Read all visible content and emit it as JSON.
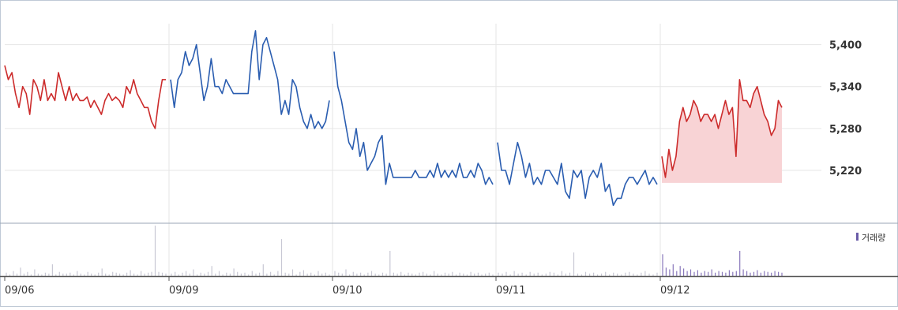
{
  "chart_data": {
    "type": "line",
    "title": "",
    "xlabel": "",
    "ylabel": "",
    "ylim": [
      5150,
      5430
    ],
    "y_ticks": [
      "5,400",
      "5,340",
      "5,280",
      "5,220"
    ],
    "y_tick_values": [
      5400,
      5340,
      5280,
      5220
    ],
    "x_ticks": [
      "09/06",
      "09/09",
      "09/10",
      "09/11",
      "09/12"
    ],
    "legend": {
      "volume_label": "거래량",
      "placement": "top-right of volume panel"
    },
    "colors": {
      "up": "#cc2b2b",
      "down": "#2a5db0",
      "fill_today": "#f8d3d5",
      "volume": "#c8c8d4",
      "volume_today": "#8877bb",
      "grid": "#e6e6e6",
      "axis": "#555555",
      "legend_marker": "#6a5ca8"
    },
    "series": [
      {
        "day": "09/06",
        "color": "up",
        "values": [
          5370,
          5350,
          5360,
          5330,
          5310,
          5340,
          5330,
          5300,
          5350,
          5340,
          5320,
          5350,
          5320,
          5330,
          5320,
          5360,
          5340,
          5320,
          5340,
          5320,
          5330,
          5320,
          5320,
          5325,
          5310,
          5320,
          5310,
          5300,
          5320,
          5330,
          5320,
          5325,
          5320,
          5310,
          5340,
          5330,
          5350,
          5330,
          5320,
          5310,
          5310,
          5290,
          5280,
          5320,
          5350,
          5350
        ]
      },
      {
        "day": "09/09",
        "color": "down",
        "values": [
          5350,
          5310,
          5350,
          5360,
          5390,
          5370,
          5380,
          5400,
          5360,
          5320,
          5340,
          5380,
          5340,
          5340,
          5330,
          5350,
          5340,
          5330,
          5330,
          5330,
          5330,
          5330,
          5390,
          5420,
          5350,
          5400,
          5410,
          5390,
          5370,
          5350,
          5300,
          5320,
          5300,
          5350,
          5340,
          5310,
          5290,
          5280,
          5300,
          5280,
          5290,
          5280,
          5290,
          5320
        ]
      },
      {
        "day": "09/10",
        "color": "down",
        "values": [
          5390,
          5340,
          5320,
          5290,
          5260,
          5250,
          5280,
          5240,
          5260,
          5220,
          5230,
          5240,
          5260,
          5270,
          5200,
          5230,
          5210,
          5210,
          5210,
          5210,
          5210,
          5210,
          5220,
          5210,
          5210,
          5210,
          5220,
          5210,
          5230,
          5210,
          5220,
          5210,
          5220,
          5210,
          5230,
          5210,
          5210,
          5220,
          5210,
          5230,
          5220,
          5200,
          5210,
          5200
        ]
      },
      {
        "day": "09/11",
        "color": "down",
        "values": [
          5260,
          5220,
          5220,
          5200,
          5230,
          5260,
          5240,
          5210,
          5230,
          5200,
          5210,
          5200,
          5220,
          5220,
          5210,
          5200,
          5230,
          5190,
          5180,
          5220,
          5210,
          5220,
          5180,
          5210,
          5220,
          5210,
          5230,
          5190,
          5200,
          5170,
          5180,
          5180,
          5200,
          5210,
          5210,
          5200,
          5210,
          5220,
          5200,
          5210,
          5200
        ]
      },
      {
        "day": "09/12",
        "color": "up",
        "fill": true,
        "values": [
          5240,
          5210,
          5250,
          5220,
          5240,
          5290,
          5310,
          5290,
          5300,
          5320,
          5310,
          5290,
          5300,
          5300,
          5290,
          5300,
          5280,
          5300,
          5320,
          5300,
          5310,
          5240,
          5350,
          5320,
          5320,
          5310,
          5330,
          5340,
          5320,
          5300,
          5290,
          5270,
          5280,
          5320,
          5310
        ]
      }
    ],
    "volume": [
      {
        "day": "09/06",
        "values": [
          4,
          2,
          6,
          3,
          10,
          3,
          5,
          2,
          8,
          3,
          2,
          4,
          3,
          14,
          2,
          5,
          3,
          3,
          4,
          2,
          6,
          3,
          2,
          5,
          3,
          2,
          4,
          9,
          3,
          2,
          5,
          4,
          3,
          2,
          4,
          7,
          3,
          2,
          6,
          3,
          4,
          5,
          60,
          5,
          4,
          3
        ]
      },
      {
        "day": "09/09",
        "values": [
          3,
          5,
          2,
          4,
          6,
          3,
          8,
          2,
          4,
          3,
          5,
          12,
          3,
          6,
          2,
          4,
          3,
          9,
          5,
          3,
          4,
          2,
          6,
          3,
          4,
          14,
          3,
          5,
          2,
          6,
          44,
          4,
          3,
          8,
          2,
          5,
          7,
          3,
          4,
          2,
          6,
          3,
          4,
          2
        ]
      },
      {
        "day": "09/10",
        "values": [
          6,
          4,
          3,
          8,
          2,
          5,
          3,
          4,
          2,
          4,
          6,
          3,
          2,
          4,
          3,
          30,
          4,
          3,
          5,
          2,
          4,
          3,
          2,
          4,
          5,
          3,
          2,
          6,
          3,
          2,
          4,
          3,
          5,
          2,
          4,
          3,
          2,
          5,
          3,
          4,
          2,
          3,
          4,
          2
        ]
      },
      {
        "day": "09/11",
        "values": [
          4,
          3,
          5,
          2,
          6,
          3,
          4,
          2,
          5,
          3,
          4,
          2,
          3,
          5,
          4,
          2,
          6,
          3,
          4,
          28,
          3,
          2,
          5,
          3,
          4,
          2,
          3,
          5,
          2,
          4,
          3,
          2,
          4,
          5,
          3,
          2,
          4,
          6,
          3,
          2,
          4
        ]
      },
      {
        "day": "09/12",
        "values": [
          26,
          10,
          8,
          14,
          6,
          12,
          9,
          6,
          8,
          5,
          7,
          4,
          6,
          5,
          8,
          4,
          6,
          5,
          4,
          7,
          5,
          6,
          30,
          8,
          6,
          4,
          5,
          7,
          4,
          6,
          5,
          4,
          6,
          5,
          4
        ]
      }
    ]
  }
}
